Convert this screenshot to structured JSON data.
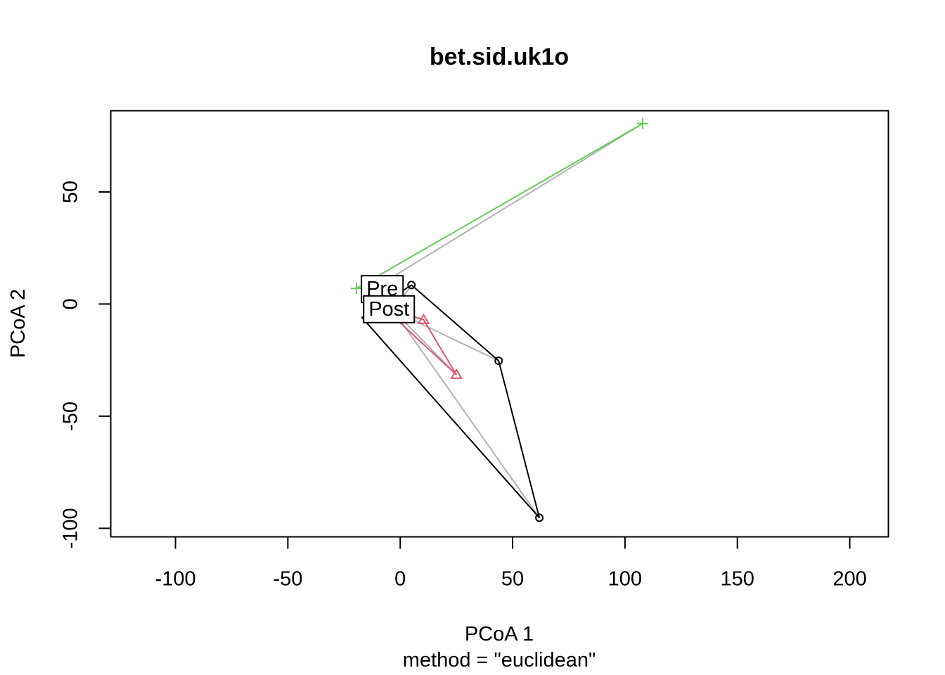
{
  "chart_data": {
    "type": "scatter",
    "title": "bet.sid.uk1o",
    "xlabel": "PCoA 1",
    "subtitle": "method = \"euclidean\"",
    "ylabel": "PCoA 2",
    "xlim": [
      -128.8,
      217.2
    ],
    "ylim": [
      -103.8,
      86.2
    ],
    "xticks": [
      -100,
      -50,
      0,
      50,
      100,
      150,
      200
    ],
    "yticks": [
      -100,
      -50,
      0,
      50
    ],
    "xtick_labels": [
      "-100",
      "-50",
      "0",
      "50",
      "100",
      "150",
      "200"
    ],
    "ytick_labels": [
      "-100",
      "-50",
      "0",
      "50"
    ],
    "grid": false,
    "colors": {
      "black": "#000000",
      "red": "#DF536B",
      "green": "#61D04F",
      "gray": "#B3B3B3"
    },
    "groups": [
      {
        "name": "Pre",
        "centroid": [
          -10,
          8
        ],
        "spider_color": "gray",
        "hull_color": "green",
        "hull_vertices": [
          [
            -19.5,
            7
          ],
          [
            107.9,
            80.5
          ]
        ],
        "points": [
          {
            "x": 107.9,
            "y": 80.5,
            "pch": "plus",
            "color": "green"
          },
          {
            "x": -19.5,
            "y": 7,
            "pch": "plus",
            "color": "green"
          }
        ]
      },
      {
        "name": "Post",
        "centroid": [
          -3,
          -3
        ],
        "spider_color": "gray",
        "hull_color": "black",
        "hull_vertices": [
          [
            -17,
            -6
          ],
          [
            5,
            8.5
          ],
          [
            43.8,
            -25.3
          ],
          [
            61.9,
            -95.3
          ]
        ],
        "points": [
          {
            "x": 5,
            "y": 8.5,
            "pch": "circle",
            "color": "black"
          },
          {
            "x": 43.8,
            "y": -25.3,
            "pch": "circle",
            "color": "black"
          },
          {
            "x": 61.9,
            "y": -95.3,
            "pch": "circle",
            "color": "black"
          }
        ]
      },
      {
        "name": "",
        "centroid": [
          -3,
          -3
        ],
        "spider_color": "gray",
        "hull_color": "red",
        "hull_vertices": [
          [
            -8,
            -1
          ],
          [
            10.4,
            -7
          ],
          [
            25,
            -31.5
          ]
        ],
        "points": [
          {
            "x": 10.4,
            "y": -7,
            "pch": "triangle",
            "color": "red"
          },
          {
            "x": 25,
            "y": -31.5,
            "pch": "triangle",
            "color": "red"
          }
        ]
      }
    ],
    "labels": [
      {
        "text": "Pre",
        "x": -8,
        "y": 7
      },
      {
        "text": "Post",
        "x": -5,
        "y": -2
      }
    ]
  }
}
